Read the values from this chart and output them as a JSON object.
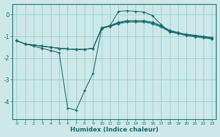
{
  "x": [
    0,
    1,
    2,
    3,
    4,
    5,
    6,
    7,
    8,
    9,
    10,
    11,
    12,
    13,
    14,
    15,
    16,
    17,
    18,
    19,
    20,
    21,
    22,
    23
  ],
  "line1": [
    -1.2,
    -1.35,
    -1.45,
    -1.55,
    -1.65,
    -1.75,
    -4.3,
    -4.4,
    -3.5,
    -2.7,
    -0.65,
    -0.5,
    0.15,
    0.18,
    0.15,
    0.12,
    -0.05,
    -0.45,
    -0.8,
    -0.85,
    -0.9,
    -0.95,
    -1.0,
    -1.05
  ],
  "line2": [
    -1.2,
    -1.35,
    -1.4,
    -1.45,
    -1.5,
    -1.55,
    -1.58,
    -1.6,
    -1.6,
    -1.55,
    -0.6,
    -0.5,
    -0.35,
    -0.28,
    -0.28,
    -0.28,
    -0.35,
    -0.5,
    -0.72,
    -0.82,
    -0.92,
    -0.97,
    -1.02,
    -1.07
  ],
  "line3": [
    -1.2,
    -1.35,
    -1.4,
    -1.45,
    -1.5,
    -1.55,
    -1.58,
    -1.6,
    -1.6,
    -1.55,
    -0.62,
    -0.52,
    -0.38,
    -0.3,
    -0.3,
    -0.3,
    -0.37,
    -0.53,
    -0.75,
    -0.84,
    -0.94,
    -0.99,
    -1.04,
    -1.09
  ],
  "line4": [
    -1.2,
    -1.35,
    -1.4,
    -1.45,
    -1.5,
    -1.55,
    -1.58,
    -1.6,
    -1.6,
    -1.55,
    -0.64,
    -0.54,
    -0.42,
    -0.34,
    -0.34,
    -0.34,
    -0.42,
    -0.57,
    -0.78,
    -0.87,
    -0.97,
    -1.02,
    -1.07,
    -1.12
  ],
  "bg_color": "#cce8e8",
  "grid_color": "#99cccc",
  "line_color": "#1a6b6b",
  "xlabel": "Humidex (Indice chaleur)",
  "ylim": [
    -4.8,
    0.5
  ],
  "xlim": [
    -0.5,
    23.5
  ],
  "yticks": [
    0,
    -1,
    -2,
    -3,
    -4
  ],
  "xticks": [
    0,
    1,
    2,
    3,
    4,
    5,
    6,
    7,
    8,
    9,
    10,
    11,
    12,
    13,
    14,
    15,
    16,
    17,
    18,
    19,
    20,
    21,
    22,
    23
  ]
}
